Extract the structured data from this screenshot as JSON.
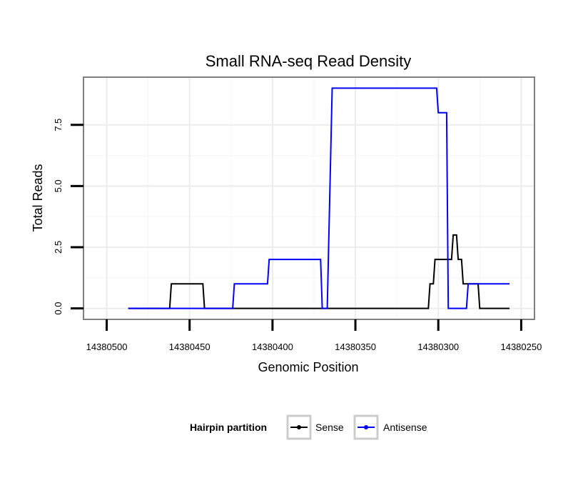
{
  "chart_data": {
    "type": "line",
    "title": "Small RNA-seq Read Density",
    "xlabel": "Genomic Position",
    "ylabel": "Total Reads",
    "x_reversed": true,
    "xlim": [
      14380514,
      14380242
    ],
    "ylim": [
      -0.45,
      9.45
    ],
    "x_ticks": [
      14380500,
      14380450,
      14380400,
      14380350,
      14380300,
      14380250
    ],
    "x_tick_labels": [
      "14380500",
      "14380450",
      "14380400",
      "14380350",
      "14380300",
      "14380250"
    ],
    "y_ticks": [
      0,
      2.5,
      5,
      7.5
    ],
    "y_tick_labels": [
      "0.0",
      "2.5",
      "5.0",
      "7.5"
    ],
    "legend": {
      "title": "Hairpin partition",
      "position": "bottom",
      "entries": [
        "Sense",
        "Antisense"
      ]
    },
    "series": [
      {
        "name": "Sense",
        "color": "#000000",
        "x": [
          14380487,
          14380462,
          14380461,
          14380442,
          14380441,
          14380370,
          14380310,
          14380306,
          14380305,
          14380303,
          14380302,
          14380292,
          14380291,
          14380289,
          14380288,
          14380286,
          14380285,
          14380280,
          14380279,
          14380276,
          14380275,
          14380270,
          14380269,
          14380257
        ],
        "y": [
          0,
          0,
          1,
          1,
          0,
          0,
          0,
          0,
          1,
          1,
          2,
          2,
          3,
          3,
          2,
          2,
          1,
          1,
          1,
          1,
          0,
          0,
          0,
          0
        ]
      },
      {
        "name": "Antisense",
        "color": "#0000ff",
        "x": [
          14380487,
          14380444,
          14380443,
          14380424,
          14380423,
          14380403,
          14380402,
          14380371,
          14380370,
          14380367,
          14380364,
          14380301,
          14380300,
          14380295,
          14380294,
          14380288,
          14380283,
          14380282,
          14380264,
          14380257
        ],
        "y": [
          0,
          0,
          0,
          0,
          1,
          1,
          2,
          2,
          0,
          0,
          9,
          9,
          8,
          8,
          0,
          0,
          0,
          1,
          1,
          1
        ]
      }
    ]
  }
}
